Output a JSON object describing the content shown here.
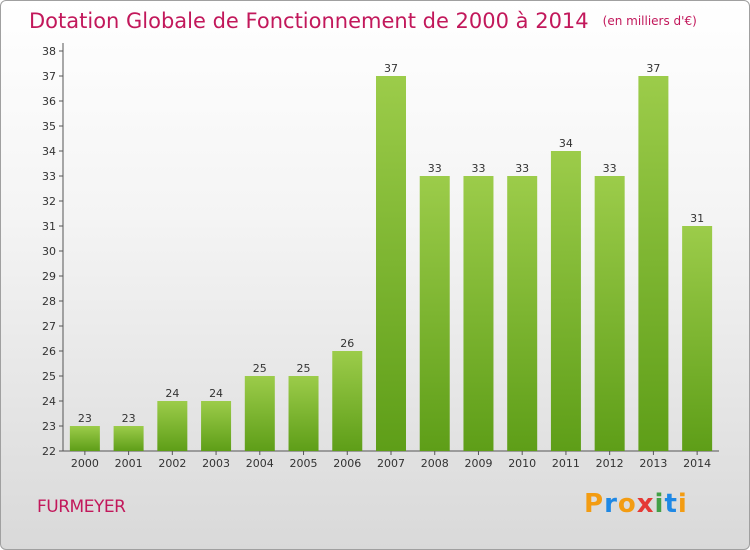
{
  "title": "Dotation Globale de Fonctionnement de 2000 à 2014",
  "subtitle": "(en milliers d'€)",
  "commune": "FURMEYER",
  "logo": {
    "text": "Proxiti",
    "letters": [
      "P",
      "r",
      "o",
      "x",
      "i",
      "t",
      "i"
    ],
    "colors": [
      "#f39c12",
      "#1e88e5",
      "#f39c12",
      "#e53935",
      "#43a047",
      "#1e88e5",
      "#f39c12"
    ]
  },
  "colors": {
    "bar_top": "#9ccc4a",
    "bar_bottom": "#5e9e18",
    "title": "#c2185b",
    "axis": "#333333"
  },
  "chart_data": {
    "type": "bar",
    "categories": [
      "2000",
      "2001",
      "2002",
      "2003",
      "2004",
      "2005",
      "2006",
      "2007",
      "2008",
      "2009",
      "2010",
      "2011",
      "2012",
      "2013",
      "2014"
    ],
    "values": [
      23,
      23,
      24,
      24,
      25,
      25,
      26,
      37,
      33,
      33,
      33,
      34,
      33,
      37,
      31
    ],
    "ylim": [
      22,
      38
    ],
    "yticks": [
      22,
      23,
      24,
      25,
      26,
      27,
      28,
      29,
      30,
      31,
      32,
      33,
      34,
      35,
      36,
      37,
      38
    ],
    "grid": false,
    "data_labels": true
  }
}
